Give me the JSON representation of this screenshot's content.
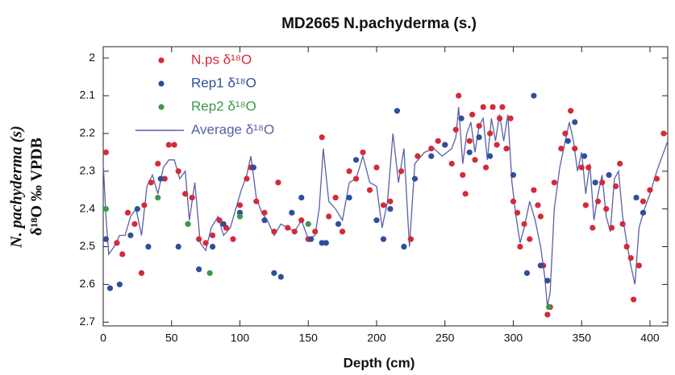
{
  "chart_data": {
    "type": "scatter",
    "title": "MD2665 N.pachyderma (s.)",
    "x_label": "Depth (cm)",
    "y_label": [
      "N. pachyderma (s)",
      "δ¹⁸O ‰ VPDB"
    ],
    "xlim": [
      0,
      413
    ],
    "xticks": [
      0,
      50,
      100,
      150,
      200,
      250,
      300,
      350,
      400
    ],
    "ylim": [
      1.97,
      2.71
    ],
    "yticks": [
      2,
      2.1,
      2.2,
      2.3,
      2.4,
      2.5,
      2.6,
      2.7
    ],
    "y_inverted": true,
    "series": [
      {
        "name": "N.ps δ¹⁸O",
        "color": "#d42a3a",
        "mark": "point",
        "x": [
          2,
          10,
          14,
          18,
          23,
          28,
          30,
          35,
          40,
          45,
          48,
          52,
          55,
          60,
          65,
          70,
          75,
          80,
          85,
          90,
          95,
          100,
          105,
          108,
          112,
          118,
          125,
          128,
          135,
          140,
          145,
          150,
          155,
          160,
          165,
          170,
          175,
          180,
          185,
          190,
          195,
          200,
          205,
          210,
          218,
          225,
          230,
          240,
          245,
          250,
          255,
          258,
          260,
          263,
          265,
          268,
          270,
          272,
          275,
          278,
          280,
          283,
          285,
          288,
          290,
          292,
          295,
          298,
          300,
          303,
          305,
          308,
          312,
          315,
          318,
          320,
          322,
          325,
          327,
          330,
          335,
          338,
          342,
          345,
          350,
          353,
          355,
          358,
          362,
          365,
          368,
          372,
          375,
          378,
          380,
          383,
          386,
          388,
          392,
          395,
          400,
          405,
          410
        ],
        "values": [
          2.25,
          2.49,
          2.52,
          2.41,
          2.44,
          2.57,
          2.39,
          2.33,
          2.28,
          2.32,
          2.23,
          2.23,
          2.3,
          2.36,
          2.37,
          2.48,
          2.49,
          2.47,
          2.43,
          2.45,
          2.48,
          2.39,
          2.32,
          2.29,
          2.38,
          2.41,
          2.46,
          2.33,
          2.45,
          2.46,
          2.43,
          2.48,
          2.46,
          2.21,
          2.42,
          2.37,
          2.46,
          2.3,
          2.32,
          2.25,
          2.35,
          2.29,
          2.39,
          2.38,
          2.3,
          2.48,
          2.26,
          2.24,
          2.22,
          2.23,
          2.28,
          2.19,
          2.1,
          2.31,
          2.36,
          2.22,
          2.15,
          2.27,
          2.18,
          2.13,
          2.29,
          2.2,
          2.13,
          2.23,
          2.16,
          2.13,
          2.24,
          2.16,
          2.38,
          2.41,
          2.5,
          2.44,
          2.48,
          2.35,
          2.39,
          2.42,
          2.55,
          2.68,
          2.66,
          2.33,
          2.24,
          2.2,
          2.14,
          2.24,
          2.29,
          2.39,
          2.29,
          2.45,
          2.38,
          2.33,
          2.4,
          2.45,
          2.34,
          2.28,
          2.44,
          2.5,
          2.53,
          2.64,
          2.55,
          2.38,
          2.35,
          2.32,
          2.2
        ]
      },
      {
        "name": "Rep1 δ¹⁸O",
        "color": "#2f4e9c",
        "mark": "point",
        "x": [
          2,
          5,
          12,
          20,
          25,
          33,
          42,
          55,
          62,
          70,
          80,
          88,
          100,
          110,
          118,
          125,
          130,
          138,
          145,
          152,
          160,
          163,
          172,
          180,
          185,
          200,
          205,
          210,
          215,
          220,
          228,
          240,
          250,
          262,
          268,
          275,
          283,
          300,
          310,
          315,
          320,
          325,
          340,
          345,
          352,
          360,
          370,
          390,
          395
        ],
        "values": [
          2.48,
          2.61,
          2.6,
          2.47,
          2.4,
          2.5,
          2.32,
          2.5,
          2.44,
          2.56,
          2.5,
          2.44,
          2.41,
          2.29,
          2.43,
          2.57,
          2.58,
          2.41,
          2.37,
          2.48,
          2.49,
          2.49,
          2.44,
          2.37,
          2.27,
          2.43,
          2.48,
          2.4,
          2.14,
          2.5,
          2.32,
          2.26,
          2.23,
          2.16,
          2.25,
          2.21,
          2.26,
          2.31,
          2.57,
          2.1,
          2.55,
          2.59,
          2.22,
          2.17,
          2.26,
          2.33,
          2.31,
          2.37,
          2.41
        ]
      },
      {
        "name": "Rep2 δ¹⁸O",
        "color": "#3a9a4a",
        "mark": "point",
        "x": [
          2,
          40,
          62,
          78,
          100,
          150,
          326
        ],
        "values": [
          2.4,
          2.37,
          2.44,
          2.57,
          2.42,
          2.44,
          2.66
        ]
      },
      {
        "name": "Average δ¹⁸O",
        "color": "#5a5fa8",
        "mark": "line",
        "x": [
          0,
          2,
          4,
          8,
          12,
          16,
          20,
          24,
          28,
          32,
          36,
          40,
          44,
          48,
          52,
          56,
          60,
          63,
          67,
          71,
          75,
          79,
          84,
          88,
          93,
          97,
          101,
          105,
          108,
          112,
          116,
          120,
          125,
          130,
          135,
          140,
          145,
          150,
          155,
          158,
          161,
          165,
          170,
          175,
          180,
          185,
          190,
          195,
          200,
          204,
          208,
          212,
          216,
          220,
          224,
          228,
          235,
          242,
          248,
          255,
          258,
          260,
          263,
          266,
          269,
          272,
          275,
          278,
          281,
          284,
          287,
          290,
          293,
          296,
          299,
          302,
          305,
          308,
          312,
          316,
          320,
          323,
          325,
          327,
          330,
          334,
          338,
          341,
          344,
          347,
          350,
          353,
          356,
          359,
          362,
          365,
          368,
          371,
          374,
          377,
          380,
          383,
          386,
          389,
          392,
          396,
          400,
          405,
          413
        ],
        "values": [
          2.28,
          2.42,
          2.52,
          2.5,
          2.47,
          2.47,
          2.42,
          2.4,
          2.47,
          2.34,
          2.31,
          2.36,
          2.29,
          2.27,
          2.27,
          2.32,
          2.3,
          2.43,
          2.33,
          2.49,
          2.51,
          2.45,
          2.42,
          2.47,
          2.45,
          2.4,
          2.35,
          2.31,
          2.26,
          2.37,
          2.41,
          2.43,
          2.47,
          2.44,
          2.45,
          2.46,
          2.43,
          2.48,
          2.47,
          2.4,
          2.24,
          2.38,
          2.4,
          2.43,
          2.33,
          2.32,
          2.26,
          2.33,
          2.34,
          2.45,
          2.38,
          2.2,
          2.33,
          2.24,
          2.5,
          2.28,
          2.25,
          2.24,
          2.26,
          2.24,
          2.21,
          2.13,
          2.28,
          2.2,
          2.17,
          2.25,
          2.18,
          2.16,
          2.27,
          2.16,
          2.22,
          2.15,
          2.22,
          2.15,
          2.33,
          2.42,
          2.49,
          2.45,
          2.38,
          2.43,
          2.5,
          2.58,
          2.66,
          2.62,
          2.4,
          2.29,
          2.22,
          2.17,
          2.22,
          2.3,
          2.25,
          2.36,
          2.28,
          2.43,
          2.36,
          2.31,
          2.42,
          2.46,
          2.32,
          2.3,
          2.42,
          2.49,
          2.55,
          2.6,
          2.45,
          2.4,
          2.36,
          2.3,
          2.22
        ]
      }
    ]
  }
}
